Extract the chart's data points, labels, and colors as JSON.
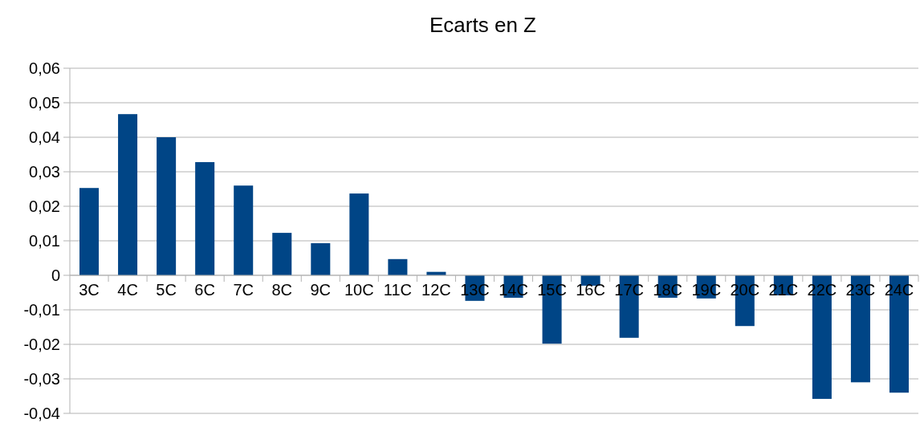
{
  "chart_data": {
    "type": "bar",
    "title": "Ecarts en Z",
    "categories": [
      "3C",
      "4C",
      "5C",
      "6C",
      "7C",
      "8C",
      "9C",
      "10C",
      "11C",
      "12C",
      "13C",
      "14C",
      "15C",
      "16C",
      "17C",
      "18C",
      "19C",
      "20C",
      "21C",
      "22C",
      "23C",
      "24C"
    ],
    "values": [
      0.0253,
      0.0467,
      0.04,
      0.0328,
      0.026,
      0.0123,
      0.0093,
      0.0237,
      0.0047,
      0.001,
      -0.0074,
      -0.0065,
      -0.0198,
      -0.003,
      -0.0181,
      -0.0065,
      -0.0067,
      -0.0147,
      -0.0058,
      -0.0358,
      -0.031,
      -0.034
    ],
    "color": "#004586",
    "ylim": [
      -0.04,
      0.06
    ],
    "yticks": [
      {
        "value": -0.04,
        "label": "-0,04"
      },
      {
        "value": -0.03,
        "label": "-0,03"
      },
      {
        "value": -0.02,
        "label": "-0,02"
      },
      {
        "value": -0.01,
        "label": "-0,01"
      },
      {
        "value": 0,
        "label": "0"
      },
      {
        "value": 0.01,
        "label": "0,01"
      },
      {
        "value": 0.02,
        "label": "0,02"
      },
      {
        "value": 0.03,
        "label": "0,03"
      },
      {
        "value": 0.04,
        "label": "0,04"
      },
      {
        "value": 0.05,
        "label": "0,05"
      },
      {
        "value": 0.06,
        "label": "0,06"
      }
    ],
    "grid": "y"
  }
}
